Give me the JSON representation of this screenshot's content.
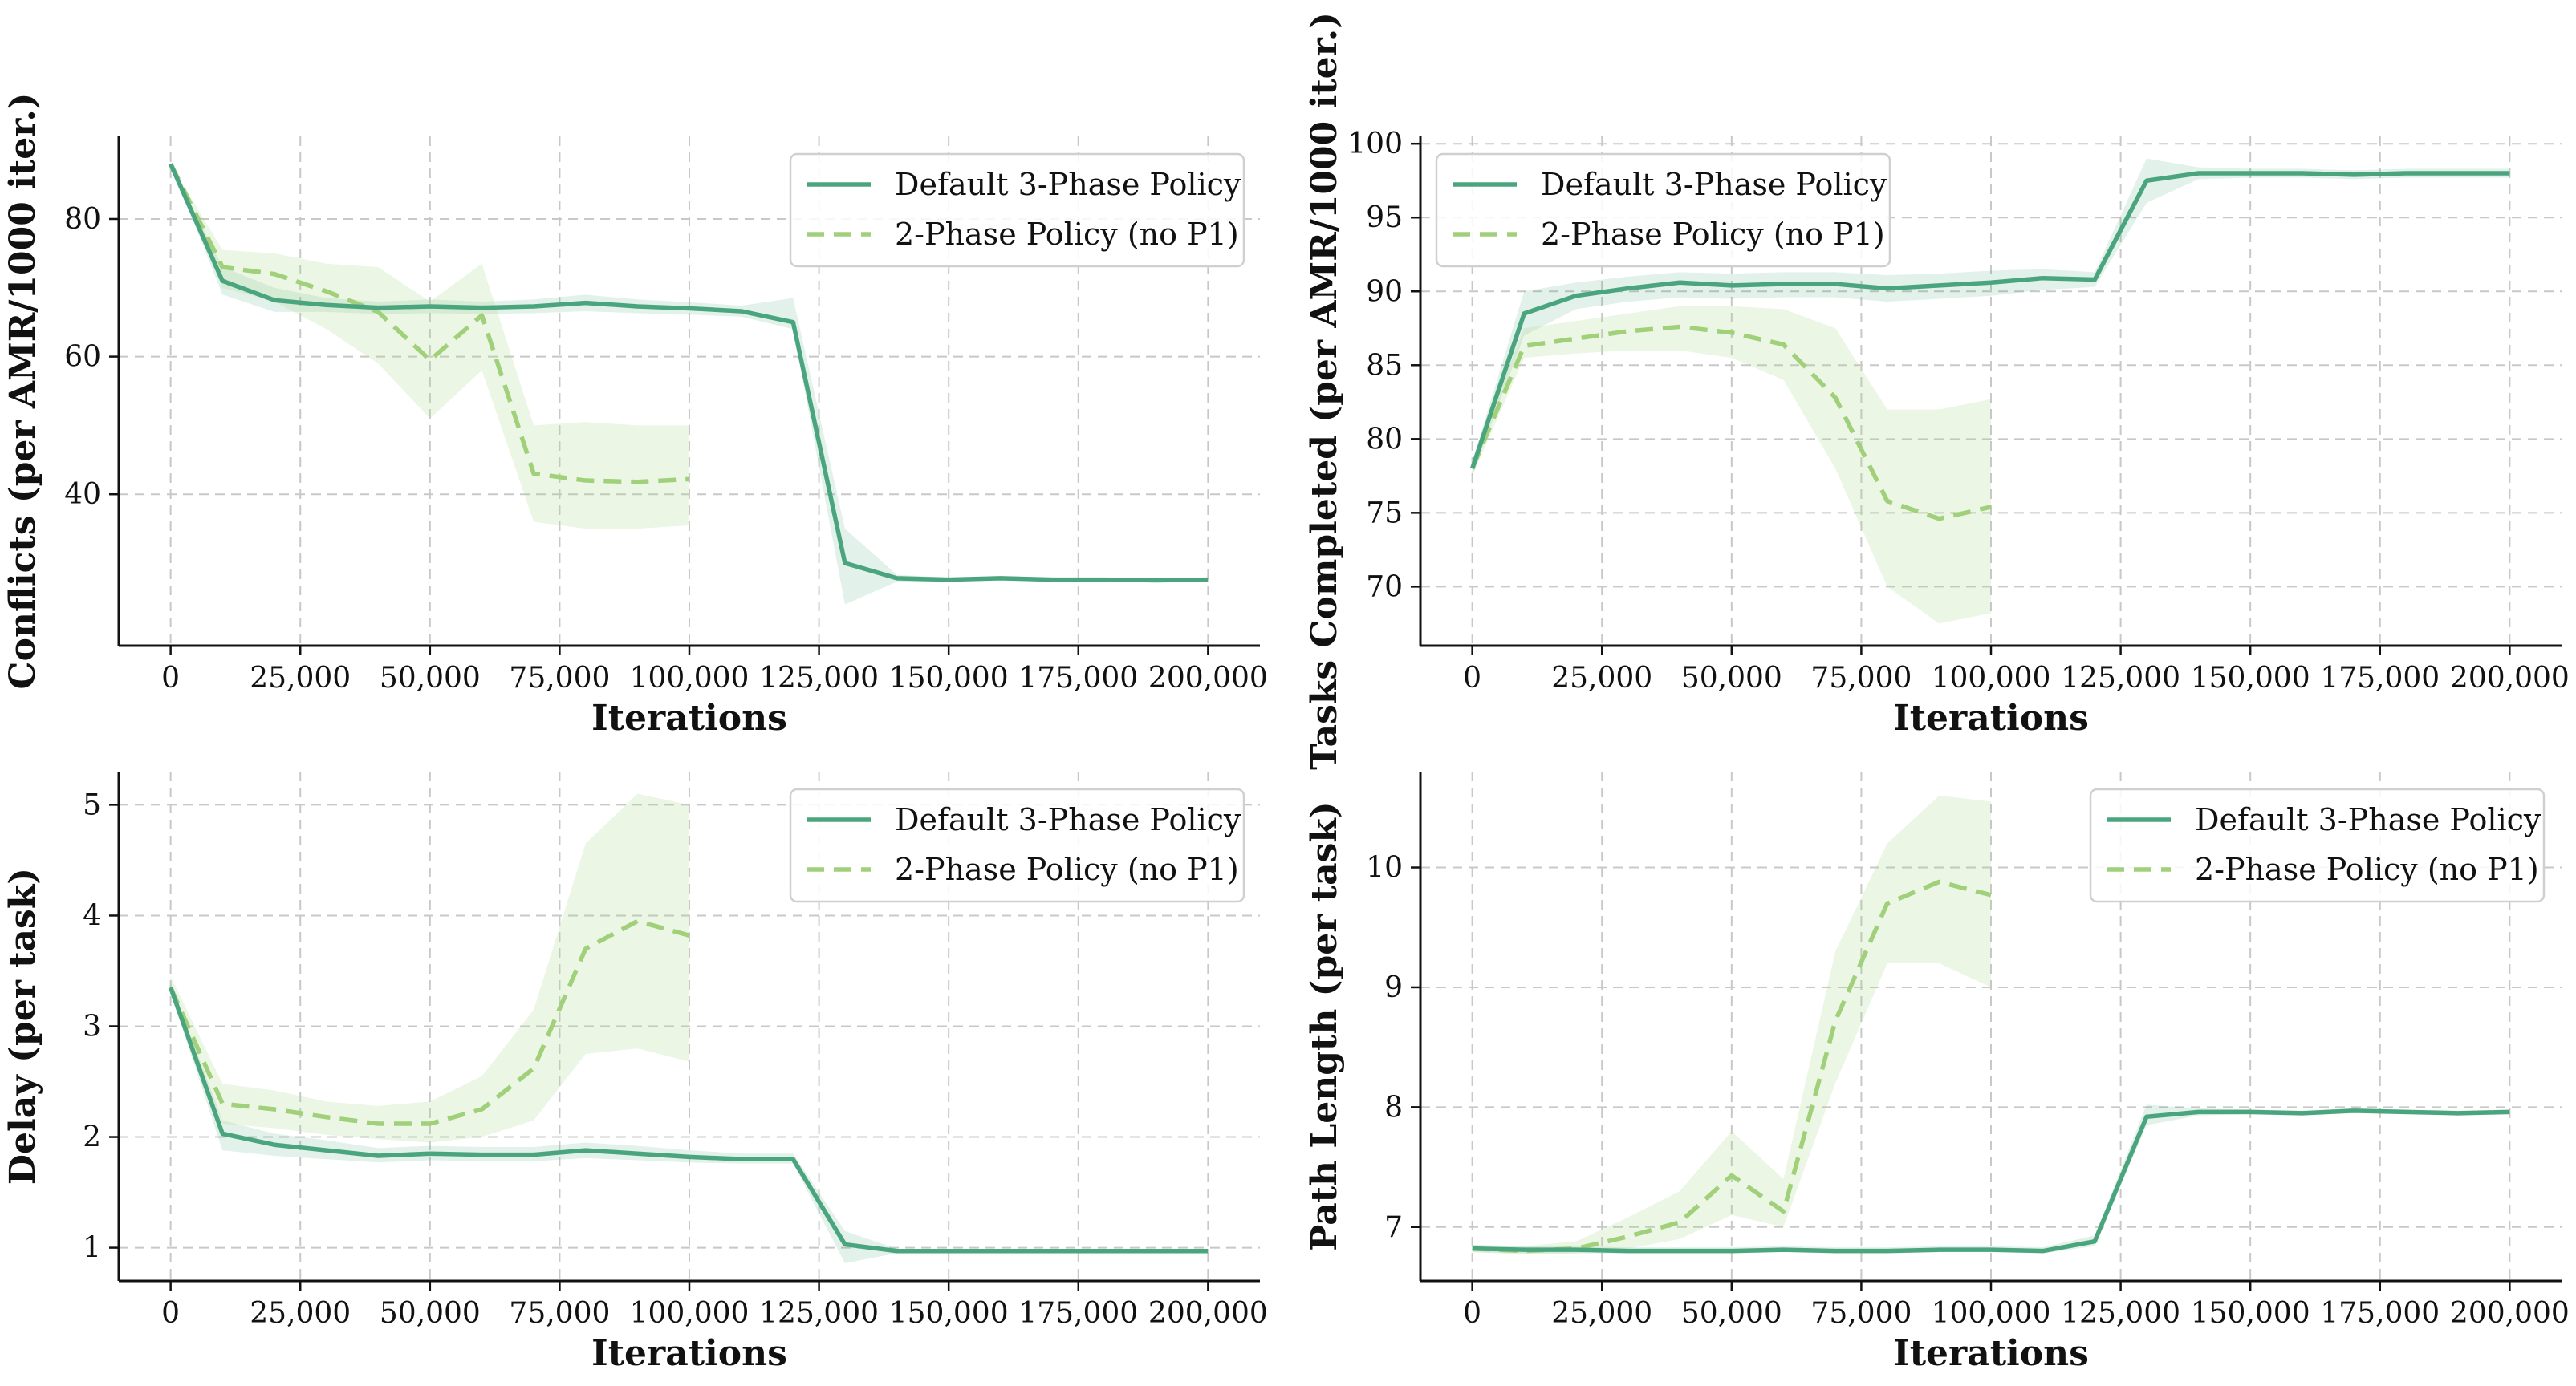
{
  "figure": {
    "x_label": "Iterations",
    "colors": {
      "default_3_phase": "#4aa57f",
      "two_phase": "#a0d07a",
      "band_default": "#4aa57f",
      "band_two_phase": "#a8d88a",
      "grid": "#c8c8c8",
      "axis": "#111111"
    }
  },
  "chart_data": [
    {
      "type": "line",
      "panel": "top-left",
      "ylabel": "Conflicts (per AMR/1000 iter.)",
      "xlabel": "Iterations",
      "xlim": [
        -10000,
        210000
      ],
      "ylim": [
        18,
        92
      ],
      "xticks": [
        0,
        25000,
        50000,
        75000,
        100000,
        125000,
        150000,
        175000,
        200000
      ],
      "xtick_labels": [
        "0",
        "25,000",
        "50,000",
        "75,000",
        "100,000",
        "125,000",
        "150,000",
        "175,000",
        "200,000"
      ],
      "yticks": [
        40,
        60,
        80
      ],
      "ytick_labels": [
        "40",
        "60",
        "80"
      ],
      "grid": true,
      "legend_position": "top-right",
      "series": [
        {
          "name": "Default 3-Phase Policy",
          "style": "solid",
          "x": [
            0,
            10000,
            20000,
            30000,
            40000,
            50000,
            60000,
            70000,
            80000,
            90000,
            100000,
            110000,
            120000,
            130000,
            140000,
            150000,
            160000,
            170000,
            180000,
            190000,
            200000
          ],
          "y": [
            88,
            71,
            68.2,
            67.5,
            67.1,
            67.3,
            67.1,
            67.3,
            67.8,
            67.3,
            67,
            66.6,
            65,
            30,
            27.8,
            27.6,
            27.8,
            27.6,
            27.6,
            27.5,
            27.6
          ],
          "lower": [
            88,
            69,
            66.5,
            66.5,
            66.2,
            66.3,
            66.2,
            66.3,
            66.6,
            66.3,
            66.1,
            65.8,
            64,
            24,
            27.3,
            27.3,
            27.5,
            27.3,
            27.3,
            27.2,
            27.3
          ],
          "upper": [
            88,
            73,
            70,
            68.5,
            68,
            68.3,
            68,
            68.3,
            69,
            68.3,
            67.9,
            67.4,
            68.5,
            35,
            28.3,
            27.9,
            28.1,
            27.9,
            27.9,
            27.8,
            27.9
          ]
        },
        {
          "name": "2-Phase Policy (no P1)",
          "style": "dashed",
          "x": [
            0,
            10000,
            20000,
            30000,
            40000,
            50000,
            60000,
            70000,
            80000,
            90000,
            100000
          ],
          "y": [
            88,
            73,
            72,
            69.5,
            66.5,
            59.5,
            66,
            43,
            42,
            41.8,
            42.2
          ],
          "lower": [
            88,
            70,
            68,
            64,
            59,
            51,
            58,
            36,
            35,
            35,
            35.5
          ],
          "upper": [
            88,
            75.5,
            75,
            73.5,
            73,
            68,
            73.5,
            50,
            50.5,
            50,
            50
          ]
        }
      ]
    },
    {
      "type": "line",
      "panel": "top-right",
      "ylabel": "Tasks Completed (per AMR/1000 iter.)",
      "xlabel": "Iterations",
      "xlim": [
        -10000,
        210000
      ],
      "ylim": [
        66,
        100.5
      ],
      "xticks": [
        0,
        25000,
        50000,
        75000,
        100000,
        125000,
        150000,
        175000,
        200000
      ],
      "xtick_labels": [
        "0",
        "25,000",
        "50,000",
        "75,000",
        "100,000",
        "125,000",
        "150,000",
        "175,000",
        "200,000"
      ],
      "yticks": [
        70,
        75,
        80,
        85,
        90,
        95,
        100
      ],
      "ytick_labels": [
        "70",
        "75",
        "80",
        "85",
        "90",
        "95",
        "100"
      ],
      "grid": true,
      "legend_position": "top-left",
      "series": [
        {
          "name": "Default 3-Phase Policy",
          "style": "solid",
          "x": [
            0,
            10000,
            20000,
            30000,
            40000,
            50000,
            60000,
            70000,
            80000,
            90000,
            100000,
            110000,
            120000,
            130000,
            140000,
            150000,
            160000,
            170000,
            180000,
            190000,
            200000
          ],
          "y": [
            78,
            88.5,
            89.7,
            90.2,
            90.6,
            90.4,
            90.5,
            90.5,
            90.2,
            90.4,
            90.6,
            90.9,
            90.8,
            97.5,
            98,
            98,
            98,
            97.9,
            98,
            98,
            98
          ],
          "lower": [
            77.5,
            87,
            88.8,
            89.3,
            89.6,
            89.5,
            89.6,
            89.6,
            89.3,
            89.5,
            89.7,
            90.1,
            90.3,
            96,
            97.6,
            97.7,
            97.7,
            97.6,
            97.7,
            97.7,
            97.7
          ],
          "upper": [
            78.5,
            90,
            90.6,
            91,
            91.3,
            91.2,
            91.3,
            91.3,
            91.1,
            91.2,
            91.4,
            91.5,
            91.3,
            99,
            98.4,
            98.3,
            98.3,
            98.2,
            98.3,
            98.3,
            98.3
          ]
        },
        {
          "name": "2-Phase Policy (no P1)",
          "style": "dashed",
          "x": [
            0,
            10000,
            20000,
            30000,
            40000,
            50000,
            60000,
            70000,
            80000,
            90000,
            100000
          ],
          "y": [
            78,
            86.3,
            86.8,
            87.3,
            87.6,
            87.2,
            86.4,
            82.8,
            75.8,
            74.6,
            75.4
          ],
          "lower": [
            77.5,
            85.5,
            85.8,
            86,
            86,
            85.5,
            84,
            78,
            70,
            67.5,
            68.2
          ],
          "upper": [
            78.5,
            87.5,
            88,
            88.5,
            89,
            89,
            88.8,
            87.5,
            82,
            82,
            82.7
          ]
        }
      ]
    },
    {
      "type": "line",
      "panel": "bottom-left",
      "ylabel": "Delay (per task)",
      "xlabel": "Iterations",
      "xlim": [
        -10000,
        210000
      ],
      "ylim": [
        0.7,
        5.3
      ],
      "xticks": [
        0,
        25000,
        50000,
        75000,
        100000,
        125000,
        150000,
        175000,
        200000
      ],
      "xtick_labels": [
        "0",
        "25,000",
        "50,000",
        "75,000",
        "100,000",
        "125,000",
        "150,000",
        "175,000",
        "200,000"
      ],
      "yticks": [
        1,
        2,
        3,
        4,
        5
      ],
      "ytick_labels": [
        "1",
        "2",
        "3",
        "4",
        "5"
      ],
      "grid": true,
      "legend_position": "top-right",
      "series": [
        {
          "name": "Default 3-Phase Policy",
          "style": "solid",
          "x": [
            0,
            10000,
            20000,
            30000,
            40000,
            50000,
            60000,
            70000,
            80000,
            90000,
            100000,
            110000,
            120000,
            130000,
            140000,
            150000,
            160000,
            170000,
            180000,
            190000,
            200000
          ],
          "y": [
            3.35,
            2.03,
            1.93,
            1.88,
            1.83,
            1.85,
            1.84,
            1.84,
            1.88,
            1.85,
            1.82,
            1.8,
            1.8,
            1.03,
            0.97,
            0.97,
            0.97,
            0.97,
            0.97,
            0.97,
            0.97
          ],
          "lower": [
            3.3,
            1.88,
            1.83,
            1.8,
            1.77,
            1.79,
            1.78,
            1.78,
            1.81,
            1.79,
            1.77,
            1.76,
            1.76,
            0.86,
            0.95,
            0.95,
            0.95,
            0.95,
            0.95,
            0.95,
            0.95
          ],
          "upper": [
            3.4,
            2.15,
            2.03,
            1.97,
            1.9,
            1.92,
            1.91,
            1.91,
            1.95,
            1.92,
            1.88,
            1.85,
            1.85,
            1.15,
            0.99,
            0.99,
            0.99,
            0.99,
            0.99,
            0.99,
            0.99
          ]
        },
        {
          "name": "2-Phase Policy (no P1)",
          "style": "dashed",
          "x": [
            0,
            10000,
            20000,
            30000,
            40000,
            50000,
            60000,
            70000,
            80000,
            90000,
            100000
          ],
          "y": [
            3.35,
            2.3,
            2.25,
            2.18,
            2.12,
            2.12,
            2.25,
            2.62,
            3.7,
            3.95,
            3.82
          ],
          "lower": [
            3.3,
            2.12,
            2.08,
            2.02,
            1.98,
            1.95,
            2.0,
            2.15,
            2.75,
            2.8,
            2.68
          ],
          "upper": [
            3.45,
            2.48,
            2.42,
            2.32,
            2.28,
            2.32,
            2.55,
            3.15,
            4.65,
            5.1,
            5.0
          ]
        }
      ]
    },
    {
      "type": "line",
      "panel": "bottom-right",
      "ylabel": "Path Length (per task)",
      "xlabel": "Iterations",
      "xlim": [
        -10000,
        210000
      ],
      "ylim": [
        6.55,
        10.8
      ],
      "xticks": [
        0,
        25000,
        50000,
        75000,
        100000,
        125000,
        150000,
        175000,
        200000
      ],
      "xtick_labels": [
        "0",
        "25,000",
        "50,000",
        "75,000",
        "100,000",
        "125,000",
        "150,000",
        "175,000",
        "200,000"
      ],
      "yticks": [
        7,
        8,
        9,
        10
      ],
      "ytick_labels": [
        "7",
        "8",
        "9",
        "10"
      ],
      "grid": true,
      "legend_position": "top-right",
      "series": [
        {
          "name": "Default 3-Phase Policy",
          "style": "solid",
          "x": [
            0,
            10000,
            20000,
            30000,
            40000,
            50000,
            60000,
            70000,
            80000,
            90000,
            100000,
            110000,
            120000,
            130000,
            140000,
            150000,
            160000,
            170000,
            180000,
            190000,
            200000
          ],
          "y": [
            6.82,
            6.81,
            6.81,
            6.8,
            6.8,
            6.8,
            6.81,
            6.8,
            6.8,
            6.81,
            6.81,
            6.8,
            6.88,
            7.92,
            7.96,
            7.96,
            7.95,
            7.97,
            7.96,
            7.95,
            7.96
          ],
          "lower": [
            6.79,
            6.78,
            6.78,
            6.78,
            6.78,
            6.78,
            6.79,
            6.78,
            6.78,
            6.79,
            6.79,
            6.78,
            6.84,
            7.85,
            7.93,
            7.94,
            7.93,
            7.95,
            7.94,
            7.93,
            7.94
          ],
          "upper": [
            6.85,
            6.84,
            6.84,
            6.83,
            6.83,
            6.83,
            6.84,
            6.83,
            6.83,
            6.84,
            6.84,
            6.83,
            6.93,
            8.02,
            7.99,
            7.98,
            7.97,
            7.99,
            7.98,
            7.97,
            7.98
          ],
          "note": "solid"
        },
        {
          "name": "2-Phase Policy (no P1)",
          "style": "dashed",
          "x": [
            0,
            10000,
            20000,
            30000,
            40000,
            50000,
            60000,
            70000,
            80000,
            90000,
            100000
          ],
          "y": [
            6.82,
            6.8,
            6.82,
            6.92,
            7.04,
            7.43,
            7.13,
            8.72,
            9.7,
            9.88,
            9.77
          ],
          "lower": [
            6.79,
            6.77,
            6.78,
            6.82,
            6.9,
            7.1,
            7.0,
            8.2,
            9.2,
            9.2,
            9.0
          ],
          "upper": [
            6.85,
            6.84,
            6.88,
            7.08,
            7.3,
            7.8,
            7.4,
            9.3,
            10.2,
            10.6,
            10.55
          ]
        }
      ]
    }
  ]
}
